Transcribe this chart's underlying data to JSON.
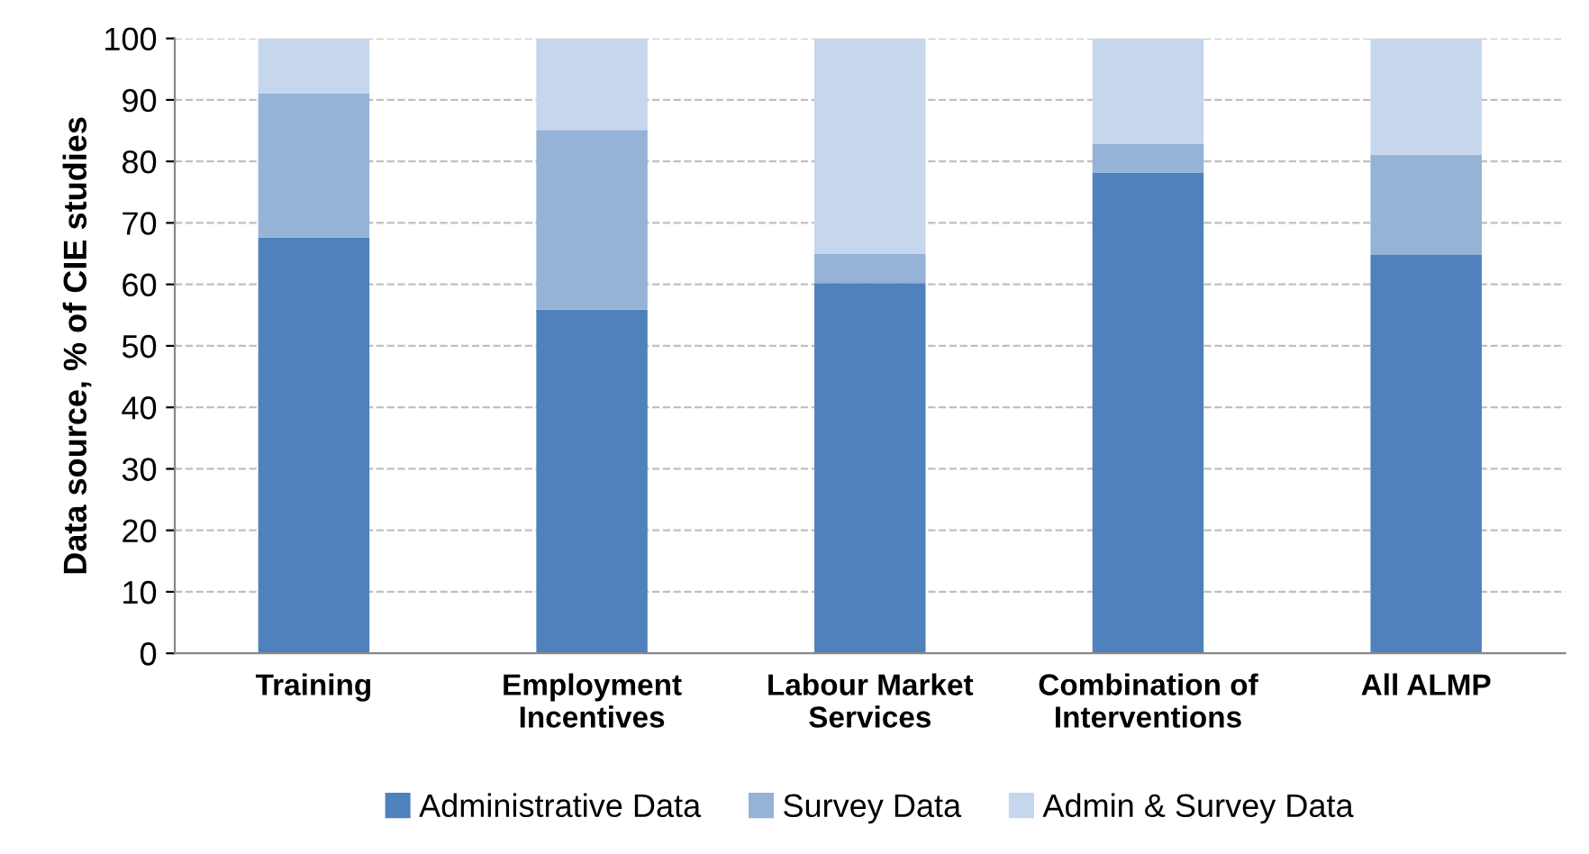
{
  "chart_data": {
    "type": "bar",
    "stacked": true,
    "ylabel": "Data source, % of CIE studies",
    "categories": [
      "Training",
      "Employment\nIncentives",
      "Labour Market\nServices",
      "Combination of\nInterventions",
      "All ALMP"
    ],
    "series": [
      {
        "name": "Administrative Data",
        "color": "#4f81bd",
        "values": [
          67.6,
          55.9,
          60.2,
          78.2,
          64.8
        ]
      },
      {
        "name": "Survey Data",
        "color": "#95b3d7",
        "values": [
          23.5,
          29.2,
          4.8,
          4.6,
          16.3
        ]
      },
      {
        "name": "Admin & Survey Data",
        "color": "#c6d6ec",
        "values": [
          8.9,
          14.9,
          35.0,
          17.2,
          18.9
        ]
      }
    ],
    "ylim": [
      0,
      100
    ],
    "yticks": [
      0,
      10,
      20,
      30,
      40,
      50,
      60,
      70,
      80,
      90,
      100
    ],
    "grid": "y",
    "legend": "bottom"
  }
}
